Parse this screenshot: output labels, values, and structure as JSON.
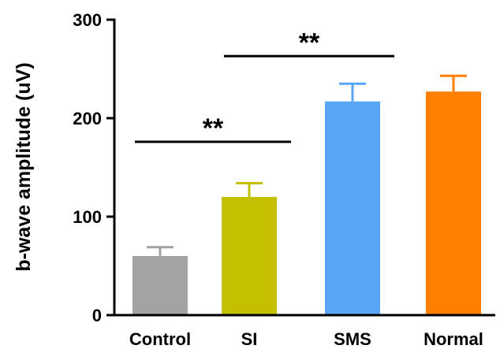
{
  "chart_data": {
    "type": "bar",
    "categories": [
      "Control",
      "SI",
      "SMS",
      "Normal"
    ],
    "values": [
      60,
      120,
      217,
      227
    ],
    "errors": [
      9,
      14,
      18,
      16
    ],
    "colors": [
      "#a3a3a5",
      "#c4c000",
      "#58a6f5",
      "#ff7f00"
    ],
    "ylabel": "b-wave amplitude (uV)",
    "ylim": [
      0,
      300
    ],
    "yticks": [
      0,
      100,
      200,
      300
    ],
    "grid": false,
    "annotations": [
      {
        "text": "**",
        "from": "Control",
        "to": "SI",
        "y": 176
      },
      {
        "text": "**",
        "from": "SI",
        "to": "SMS",
        "y": 263
      }
    ]
  }
}
